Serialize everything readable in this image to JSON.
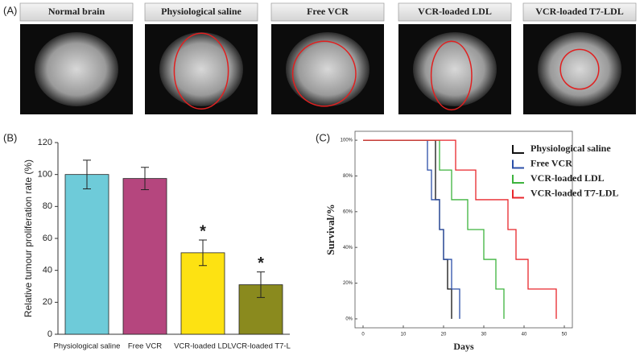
{
  "panel_a": {
    "panel": "(A)",
    "images": [
      {
        "label": "Normal brain"
      },
      {
        "label": "Physiological saline"
      },
      {
        "label": "Free VCR"
      },
      {
        "label": "VCR-loaded LDL"
      },
      {
        "label": "VCR-loaded T7-LDL"
      }
    ]
  },
  "chart_data": [
    {
      "type": "bar",
      "panel": "(B)",
      "ylabel": "Relative tumour proliferation rate (%)",
      "categories": [
        "Physiological saline",
        "Free VCR",
        "VCR-loaded LDL",
        "VCR-loaded T7-L"
      ],
      "values": [
        100,
        97.5,
        51,
        31
      ],
      "errors": [
        9,
        7,
        8,
        8
      ],
      "significance": [
        null,
        null,
        "*",
        "*"
      ],
      "colors": [
        "#6ecbd9",
        "#b5467e",
        "#fde212",
        "#8a8a1e"
      ],
      "ylim": [
        0,
        120
      ],
      "yticks": [
        0,
        20,
        40,
        60,
        80,
        100,
        120
      ]
    },
    {
      "type": "line",
      "panel": "(C)",
      "xlabel": "Days",
      "ylabel": "Survival/%",
      "legend": "upper right",
      "xlim": [
        -2,
        52
      ],
      "xticks": [
        0,
        10,
        20,
        30,
        40,
        50
      ],
      "ylim": [
        -5,
        105
      ],
      "yticks": [
        {
          "value": 0,
          "label": "0%"
        },
        {
          "value": 20,
          "label": "20%"
        },
        {
          "value": 40,
          "label": "40%"
        },
        {
          "value": 60,
          "label": "60%"
        },
        {
          "value": 80,
          "label": "80%"
        },
        {
          "value": 100,
          "label": "100%"
        }
      ],
      "series": [
        {
          "name": "Physiological saline",
          "color": "#111111",
          "x": [
            0,
            18,
            18,
            19,
            19,
            20,
            20,
            21,
            21,
            22,
            22
          ],
          "values": [
            100,
            100,
            66.7,
            66.7,
            50,
            50,
            33.3,
            33.3,
            16.7,
            16.7,
            0
          ]
        },
        {
          "name": "Free VCR",
          "color": "#2b4fa8",
          "x": [
            0,
            16,
            16,
            17,
            17,
            19,
            19,
            20,
            20,
            22,
            22,
            24,
            24
          ],
          "values": [
            100,
            100,
            83.3,
            83.3,
            66.7,
            66.7,
            50,
            50,
            33.3,
            33.3,
            16.7,
            16.7,
            0
          ]
        },
        {
          "name": "VCR-loaded LDL",
          "color": "#3db33d",
          "x": [
            0,
            19,
            19,
            22,
            22,
            26,
            26,
            30,
            30,
            33,
            33,
            35,
            35
          ],
          "values": [
            100,
            100,
            83.3,
            83.3,
            66.7,
            66.7,
            50,
            50,
            33.3,
            33.3,
            16.7,
            16.7,
            0
          ]
        },
        {
          "name": "VCR-loaded T7-LDL",
          "color": "#e8262b",
          "x": [
            0,
            23,
            23,
            28,
            28,
            36,
            36,
            38,
            38,
            41,
            41,
            48,
            48
          ],
          "values": [
            100,
            100,
            83.3,
            83.3,
            66.7,
            66.7,
            50,
            50,
            33.3,
            33.3,
            16.7,
            16.7,
            0
          ]
        }
      ]
    }
  ]
}
